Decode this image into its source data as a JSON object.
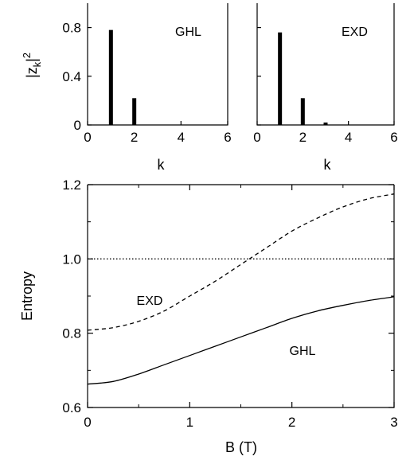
{
  "chart_data": [
    {
      "type": "bar",
      "panel": "top-left",
      "annotation": "GHL",
      "ylabel_base": "|z",
      "ylabel_sub": "k",
      "ylabel_end": "|",
      "ylabel_sup": "2",
      "xlabel": "k",
      "xlim": [
        0,
        6
      ],
      "ylim": [
        0,
        1.0
      ],
      "xticks": [
        "0",
        "2",
        "4",
        "6"
      ],
      "yticks": [
        "0",
        "0.4",
        "0.8"
      ],
      "x": [
        1,
        2
      ],
      "values": [
        0.78,
        0.22
      ]
    },
    {
      "type": "bar",
      "panel": "top-right",
      "annotation": "EXD",
      "xlabel": "k",
      "xlim": [
        0,
        6
      ],
      "ylim": [
        0,
        1.0
      ],
      "xticks": [
        "0",
        "2",
        "4",
        "6"
      ],
      "x": [
        1,
        2,
        3
      ],
      "values": [
        0.76,
        0.22,
        0.02
      ]
    },
    {
      "type": "line",
      "panel": "bottom",
      "xlabel": "B  (T)",
      "ylabel": "Entropy",
      "xlim": [
        0,
        3
      ],
      "ylim": [
        0.6,
        1.2
      ],
      "xticks": [
        "0",
        "1",
        "2",
        "3"
      ],
      "yticks": [
        "0.6",
        "0.8",
        "1.0",
        "1.2"
      ],
      "series": [
        {
          "name": "GHL",
          "style": "solid",
          "x": [
            0,
            0.25,
            0.5,
            0.75,
            1.0,
            1.25,
            1.5,
            1.75,
            2.0,
            2.25,
            2.5,
            2.75,
            3.0
          ],
          "y": [
            0.663,
            0.67,
            0.69,
            0.715,
            0.74,
            0.765,
            0.79,
            0.815,
            0.84,
            0.86,
            0.875,
            0.888,
            0.898
          ]
        },
        {
          "name": "EXD",
          "style": "dashed",
          "x": [
            0,
            0.25,
            0.5,
            0.75,
            1.0,
            1.25,
            1.5,
            1.75,
            2.0,
            2.25,
            2.5,
            2.75,
            3.0
          ],
          "y": [
            0.808,
            0.815,
            0.832,
            0.86,
            0.9,
            0.94,
            0.985,
            1.03,
            1.075,
            1.11,
            1.14,
            1.162,
            1.175
          ]
        },
        {
          "name": "",
          "style": "dotted",
          "x": [
            0,
            3
          ],
          "y": [
            1.0,
            1.0
          ]
        }
      ]
    }
  ]
}
